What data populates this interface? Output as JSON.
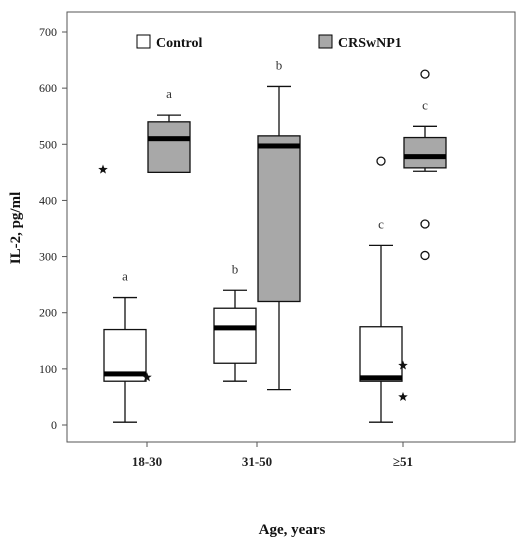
{
  "chart_data": {
    "type": "boxplot",
    "xlabel": "Age, years",
    "ylabel": "IL-2, pg/ml",
    "ylim": [
      -25,
      725
    ],
    "yticks": [
      0,
      100,
      200,
      300,
      400,
      500,
      600,
      700
    ],
    "categories": [
      "18-30",
      "31-50",
      "≥51"
    ],
    "legend_position": "top",
    "grid": false,
    "series": [
      {
        "name": "Control",
        "color": "#ffffff",
        "boxes": [
          {
            "min": 5,
            "q1": 78,
            "median": 91,
            "q3": 170,
            "max": 227,
            "label": "a",
            "outliers": [],
            "extremes": [
              455
            ]
          },
          {
            "min": 78,
            "q1": 110,
            "median": 173,
            "q3": 208,
            "max": 240,
            "label": "b",
            "outliers": [],
            "extremes": []
          },
          {
            "min": 5,
            "q1": 78,
            "median": 84,
            "q3": 175,
            "max": 320,
            "label": "c",
            "outliers": [
              470
            ],
            "extremes": []
          }
        ]
      },
      {
        "name": "CRSwNP1",
        "color": "#a8a8a8",
        "boxes": [
          {
            "min": 450,
            "q1": 450,
            "median": 510,
            "q3": 540,
            "max": 552,
            "label": "a",
            "outliers": [],
            "extremes": [
              85
            ]
          },
          {
            "min": 63,
            "q1": 220,
            "median": 497,
            "q3": 515,
            "max": 603,
            "label": "b",
            "outliers": [],
            "extremes": []
          },
          {
            "min": 452,
            "q1": 458,
            "median": 478,
            "q3": 512,
            "max": 532,
            "label": "c",
            "outliers": [
              625,
              358,
              302
            ],
            "extremes": [
              106,
              50
            ]
          }
        ]
      }
    ]
  }
}
